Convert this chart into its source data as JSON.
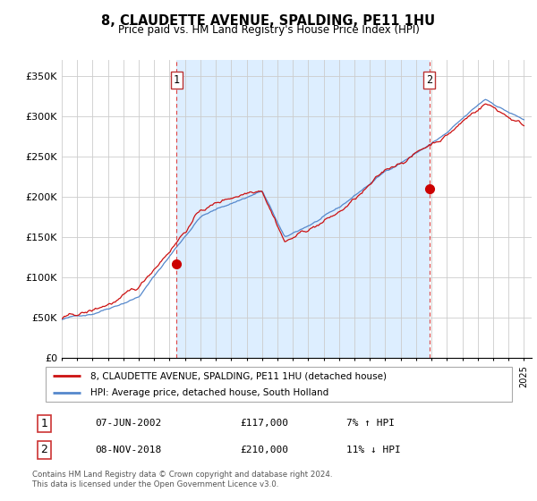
{
  "title": "8, CLAUDETTE AVENUE, SPALDING, PE11 1HU",
  "subtitle": "Price paid vs. HM Land Registry's House Price Index (HPI)",
  "ylabel_ticks": [
    "£0",
    "£50K",
    "£100K",
    "£150K",
    "£200K",
    "£250K",
    "£300K",
    "£350K"
  ],
  "ytick_values": [
    0,
    50000,
    100000,
    150000,
    200000,
    250000,
    300000,
    350000
  ],
  "ylim": [
    0,
    370000
  ],
  "legend_line1": "8, CLAUDETTE AVENUE, SPALDING, PE11 1HU (detached house)",
  "legend_line2": "HPI: Average price, detached house, South Holland",
  "sale1_label": "1",
  "sale1_date": "07-JUN-2002",
  "sale1_price": "£117,000",
  "sale1_hpi": "7% ↑ HPI",
  "sale2_label": "2",
  "sale2_date": "08-NOV-2018",
  "sale2_price": "£210,000",
  "sale2_hpi": "11% ↓ HPI",
  "footer": "Contains HM Land Registry data © Crown copyright and database right 2024.\nThis data is licensed under the Open Government Licence v3.0.",
  "sale1_year": 2002.44,
  "sale1_value": 117000,
  "sale2_year": 2018.85,
  "sale2_value": 210000,
  "hpi_color": "#5588cc",
  "hpi_fill_color": "#ddeeff",
  "price_color": "#cc1111",
  "marker_color": "#cc0000",
  "vline_color": "#dd4444",
  "grid_color": "#cccccc",
  "bg_color": "#ffffff"
}
